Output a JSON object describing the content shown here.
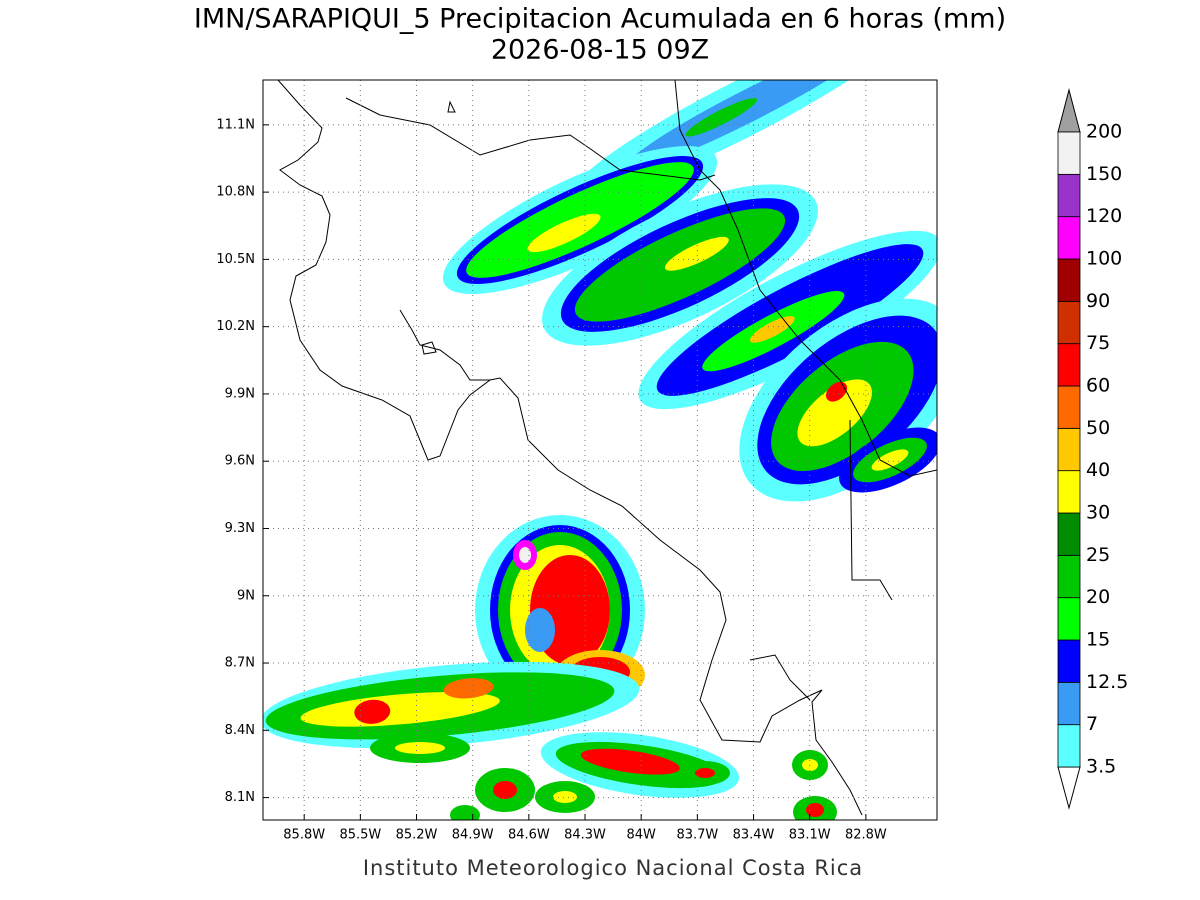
{
  "title": "IMN/SARAPIQUI_5 Precipitacion Acumulada en 6 horas (mm)",
  "subtitle": "2026-08-15 09Z",
  "map": {
    "xlim": [
      -86.02,
      -82.42
    ],
    "ylim": [
      8.0,
      11.3
    ],
    "grid": true,
    "lat_ticks": [
      {
        "value": 11.1,
        "label": "11.1N"
      },
      {
        "value": 10.8,
        "label": "10.8N"
      },
      {
        "value": 10.5,
        "label": "10.5N"
      },
      {
        "value": 10.2,
        "label": "10.2N"
      },
      {
        "value": 9.9,
        "label": "9.9N"
      },
      {
        "value": 9.6,
        "label": "9.6N"
      },
      {
        "value": 9.3,
        "label": "9.3N"
      },
      {
        "value": 9.0,
        "label": "9N"
      },
      {
        "value": 8.7,
        "label": "8.7N"
      },
      {
        "value": 8.4,
        "label": "8.4N"
      },
      {
        "value": 8.1,
        "label": "8.1N"
      }
    ],
    "lon_ticks": [
      {
        "value": -85.8,
        "label": "85.8W"
      },
      {
        "value": -85.5,
        "label": "85.5W"
      },
      {
        "value": -85.2,
        "label": "85.2W"
      },
      {
        "value": -84.9,
        "label": "84.9W"
      },
      {
        "value": -84.6,
        "label": "84.6W"
      },
      {
        "value": -84.3,
        "label": "84.3W"
      },
      {
        "value": -84.0,
        "label": "84W"
      },
      {
        "value": -83.7,
        "label": "83.7W"
      },
      {
        "value": -83.4,
        "label": "83.4W"
      },
      {
        "value": -83.1,
        "label": "83.1W"
      },
      {
        "value": -82.8,
        "label": "82.8W"
      }
    ]
  },
  "colorbar": {
    "levels": [
      3.5,
      7,
      12.5,
      15,
      20,
      25,
      30,
      40,
      50,
      60,
      75,
      90,
      100,
      120,
      150,
      200
    ],
    "colors": [
      "#5cffff",
      "#3a9bf5",
      "#0000ff",
      "#00ff00",
      "#00c800",
      "#008c00",
      "#ffff00",
      "#ffc800",
      "#ff6a00",
      "#ff0000",
      "#d03000",
      "#a00000",
      "#ff00ff",
      "#9933cc",
      "#f2f2f2"
    ],
    "under_color": "#ffffff",
    "over_color": "#a0a0a0"
  },
  "footer": "Instituto Meteorologico Nacional Costa Rica"
}
